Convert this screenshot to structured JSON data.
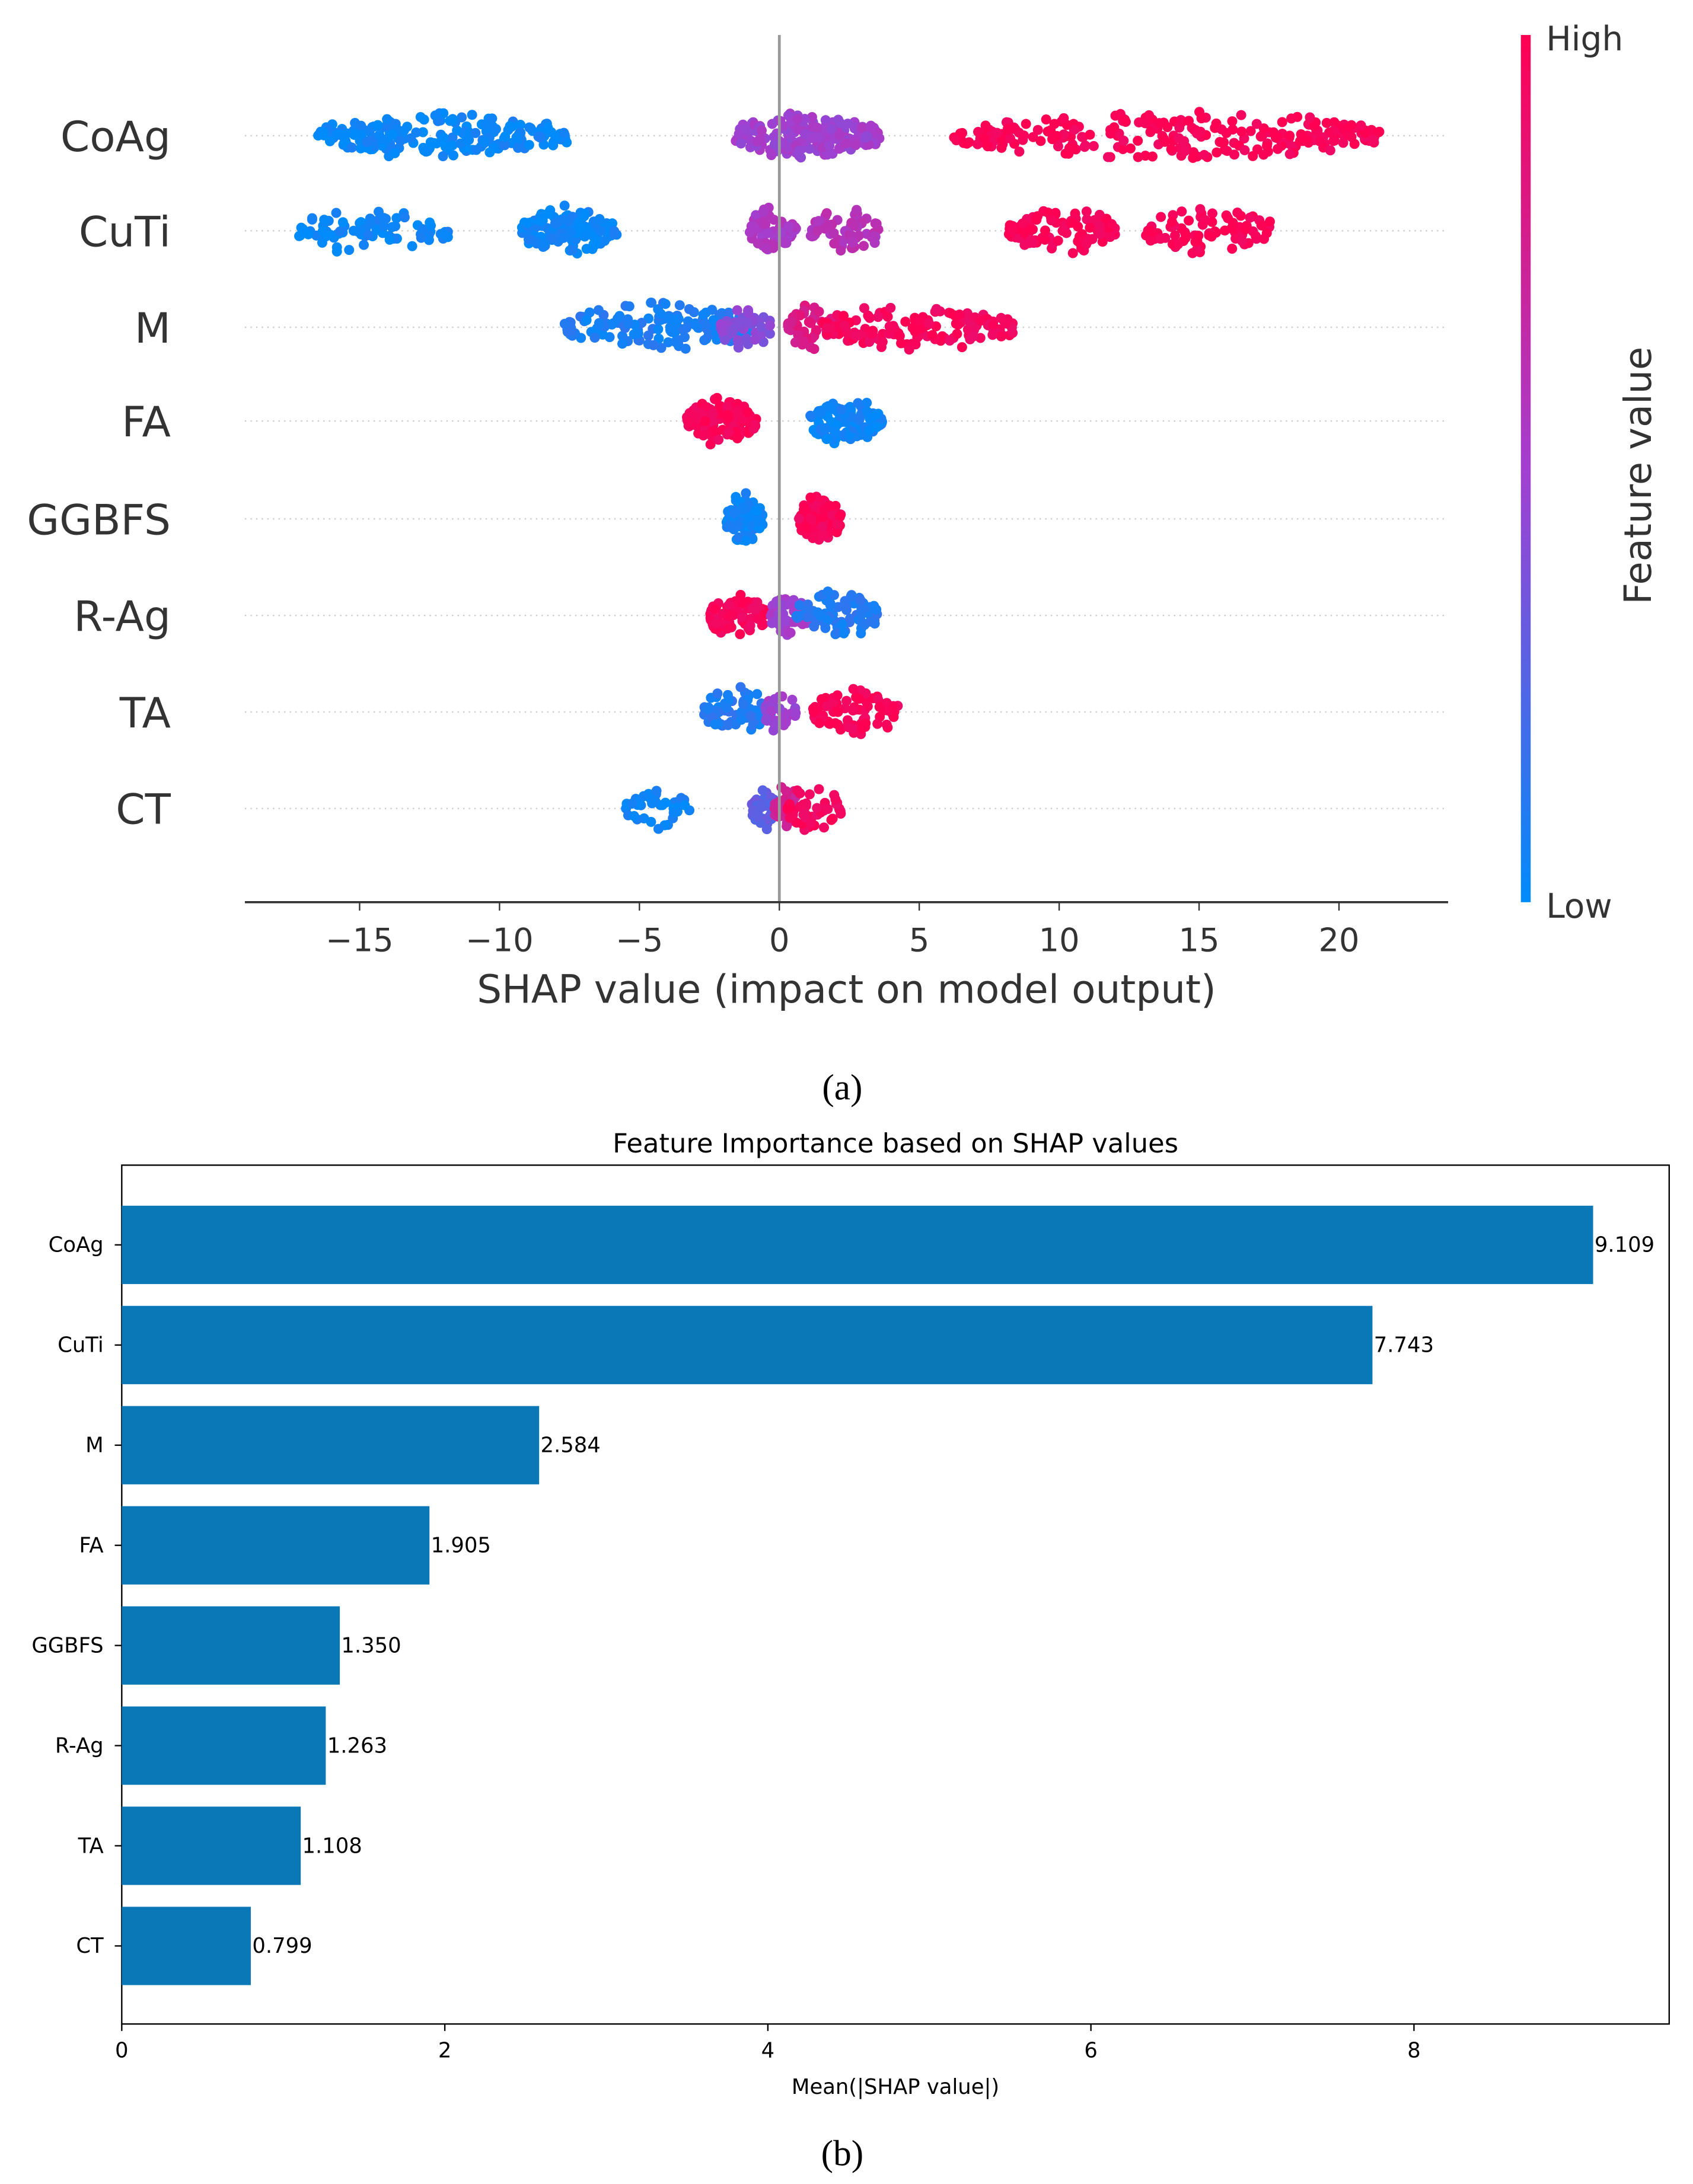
{
  "chart_data": [
    {
      "type": "scatter",
      "subtype": "shap-beeswarm",
      "panel_label": "(a)",
      "xlabel": "SHAP value (impact on model output)",
      "xlim": [
        -19.1,
        23.9
      ],
      "xticks": [
        -15,
        -10,
        -5,
        0,
        5,
        10,
        15,
        20
      ],
      "xtick_labels": [
        "−15",
        "−10",
        "−5",
        "0",
        "5",
        "10",
        "15",
        "20"
      ],
      "colorbar": {
        "label": "Feature value",
        "high_label": "High",
        "low_label": "Low",
        "low_color": "#008bfb",
        "mid_color": "#a33fd0",
        "high_color": "#ff0052"
      },
      "features": [
        {
          "name": "CoAg",
          "clusters": [
            {
              "from": -16.5,
              "to": -7.5,
              "value": 0.03,
              "n": 220
            },
            {
              "from": -1.6,
              "to": 3.6,
              "value": 0.5,
              "n": 200
            },
            {
              "from": 6.2,
              "to": 21.6,
              "value": 0.98,
              "n": 260
            }
          ]
        },
        {
          "name": "CuTi",
          "clusters": [
            {
              "from": -17.2,
              "to": -11.7,
              "value": 0.03,
              "n": 80
            },
            {
              "from": -9.2,
              "to": -5.8,
              "value": 0.03,
              "n": 120
            },
            {
              "from": -1.1,
              "to": 0.6,
              "value": 0.55,
              "n": 60
            },
            {
              "from": 1.1,
              "to": 3.6,
              "value": 0.6,
              "n": 60
            },
            {
              "from": 8.2,
              "to": 12,
              "value": 0.98,
              "n": 100
            },
            {
              "from": 13,
              "to": 17.7,
              "value": 0.98,
              "n": 80
            }
          ]
        },
        {
          "name": "M",
          "clusters": [
            {
              "from": -7.7,
              "to": -1,
              "value": 0.08,
              "n": 150
            },
            {
              "from": -2.1,
              "to": -0.3,
              "value": 0.42,
              "n": 50
            },
            {
              "from": 0.3,
              "to": 2,
              "value": 0.8,
              "n": 60
            },
            {
              "from": 1.5,
              "to": 8.4,
              "value": 0.96,
              "n": 150
            }
          ]
        },
        {
          "name": "FA",
          "clusters": [
            {
              "from": -3.3,
              "to": -0.8,
              "value": 0.97,
              "n": 120
            },
            {
              "from": 1.1,
              "to": 3.7,
              "value": 0.04,
              "n": 120
            }
          ]
        },
        {
          "name": "GGBFS",
          "clusters": [
            {
              "from": -1.9,
              "to": -0.6,
              "value": 0.04,
              "n": 100
            },
            {
              "from": 0.7,
              "to": 2.2,
              "value": 0.97,
              "n": 100
            }
          ]
        },
        {
          "name": "R-Ag",
          "clusters": [
            {
              "from": -2.5,
              "to": -0.5,
              "value": 0.97,
              "n": 80
            },
            {
              "from": -0.3,
              "to": 1,
              "value": 0.5,
              "n": 60
            },
            {
              "from": 0.6,
              "to": 3.5,
              "value": 0.1,
              "n": 80
            }
          ]
        },
        {
          "name": "TA",
          "clusters": [
            {
              "from": -2.7,
              "to": -0.3,
              "value": 0.1,
              "n": 80
            },
            {
              "from": -0.5,
              "to": 0.6,
              "value": 0.5,
              "n": 40
            },
            {
              "from": 1.2,
              "to": 4.3,
              "value": 0.97,
              "n": 80
            }
          ]
        },
        {
          "name": "CT",
          "clusters": [
            {
              "from": -5.5,
              "to": -3.2,
              "value": 0.04,
              "n": 40
            },
            {
              "from": -1,
              "to": 0,
              "value": 0.3,
              "n": 40
            },
            {
              "from": -0.2,
              "to": 0.7,
              "value": 0.75,
              "n": 30
            },
            {
              "from": 0.3,
              "to": 2.2,
              "value": 0.95,
              "n": 50
            }
          ]
        }
      ]
    },
    {
      "type": "bar",
      "orientation": "horizontal",
      "panel_label": "(b)",
      "title": "Feature Importance based on SHAP values",
      "xlabel": "Mean(|SHAP value|)",
      "ylabel": "",
      "xlim": [
        0,
        9.58
      ],
      "xticks": [
        0,
        2,
        4,
        6,
        8
      ],
      "xtick_labels": [
        "0",
        "2",
        "4",
        "6",
        "8"
      ],
      "bar_color": "#0a77b7",
      "categories": [
        "CoAg",
        "CuTi",
        "M",
        "FA",
        "GGBFS",
        "R-Ag",
        "TA",
        "CT"
      ],
      "values": [
        9.109,
        7.743,
        2.584,
        1.905,
        1.35,
        1.263,
        1.108,
        0.799
      ],
      "value_labels": [
        "9.109",
        "7.743",
        "2.584",
        "1.905",
        "1.350",
        "1.263",
        "1.108",
        "0.799"
      ]
    }
  ]
}
